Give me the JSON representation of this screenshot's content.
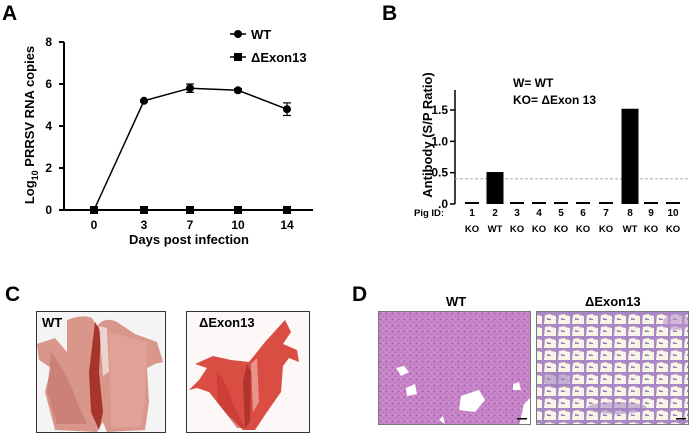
{
  "panels": {
    "A": {
      "letter": "A"
    },
    "B": {
      "letter": "B"
    },
    "C": {
      "letter": "C",
      "images": [
        {
          "label": "WT"
        },
        {
          "label": "ΔExon13"
        }
      ]
    },
    "D": {
      "letter": "D",
      "images": [
        {
          "label": "WT"
        },
        {
          "label": "ΔExon13"
        }
      ]
    }
  },
  "chart_data": [
    {
      "panel": "A",
      "type": "line",
      "title": "",
      "xlabel": "Days post infection",
      "ylabel": "Log10 PRRSV RNA copies",
      "ylabel_main": "Log",
      "ylabel_sub": "10",
      "ylabel_rest": " PRRSV RNA copies",
      "categories": [
        "0",
        "3",
        "7",
        "10",
        "14"
      ],
      "yticks": [
        "0",
        "2",
        "4",
        "6",
        "8"
      ],
      "ylim": [
        0,
        8
      ],
      "grid": false,
      "legend_position": "top-right",
      "series": [
        {
          "name": "WT",
          "marker": "circle",
          "values": [
            0,
            5.2,
            5.8,
            5.7,
            4.8
          ],
          "error": [
            0,
            0.05,
            0.2,
            0.08,
            0.3
          ]
        },
        {
          "name": "ΔExon13",
          "marker": "square",
          "values": [
            0,
            0,
            0,
            0,
            0
          ],
          "error": [
            0,
            0,
            0,
            0,
            0
          ]
        }
      ]
    },
    {
      "panel": "B",
      "type": "bar",
      "title": "",
      "xlabel": "Pig ID:",
      "ylabel": "Antibody (S/P Ratio)",
      "categories": [
        "1",
        "2",
        "3",
        "4",
        "5",
        "6",
        "7",
        "8",
        "9",
        "10"
      ],
      "genotypes": [
        "KO",
        "WT",
        "KO",
        "KO",
        "KO",
        "KO",
        "KO",
        "WT",
        "KO",
        "KO"
      ],
      "values": [
        0.01,
        0.51,
        0.01,
        0.01,
        0.01,
        0.0,
        0.0,
        1.52,
        0.0,
        0.0
      ],
      "yticks": [
        ".0",
        "0.5",
        "1.0",
        "1.5"
      ],
      "ylim": [
        0,
        1.8
      ],
      "cutoff_line": 0.4,
      "annotations": [
        "W= WT",
        "KO= ΔExon 13"
      ],
      "grid": false
    }
  ]
}
